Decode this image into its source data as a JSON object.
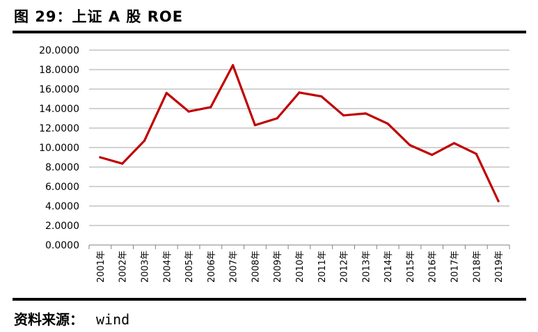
{
  "header": {
    "title": "图 29：上证 A 股 ROE"
  },
  "footer": {
    "source_label": "资料来源：",
    "source_value": "wind"
  },
  "chart_data": {
    "type": "line",
    "title": "",
    "xlabel": "",
    "ylabel": "",
    "ylim": [
      0,
      20
    ],
    "y_ticks": [
      "0.0000",
      "2.0000",
      "4.0000",
      "6.0000",
      "8.0000",
      "10.0000",
      "12.0000",
      "14.0000",
      "16.0000",
      "18.0000",
      "20.0000"
    ],
    "grid": true,
    "legend": "none",
    "categories": [
      "2001年",
      "2002年",
      "2003年",
      "2004年",
      "2005年",
      "2006年",
      "2007年",
      "2008年",
      "2009年",
      "2010年",
      "2011年",
      "2012年",
      "2013年",
      "2014年",
      "2015年",
      "2016年",
      "2017年",
      "2018年",
      "2019年"
    ],
    "series": [
      {
        "color": "#c00000",
        "values": [
          9.0,
          8.35,
          10.7,
          15.6,
          13.7,
          14.15,
          18.45,
          12.3,
          13.0,
          15.65,
          15.25,
          13.3,
          13.5,
          12.45,
          10.25,
          9.25,
          10.45,
          9.35,
          4.5
        ]
      }
    ]
  }
}
